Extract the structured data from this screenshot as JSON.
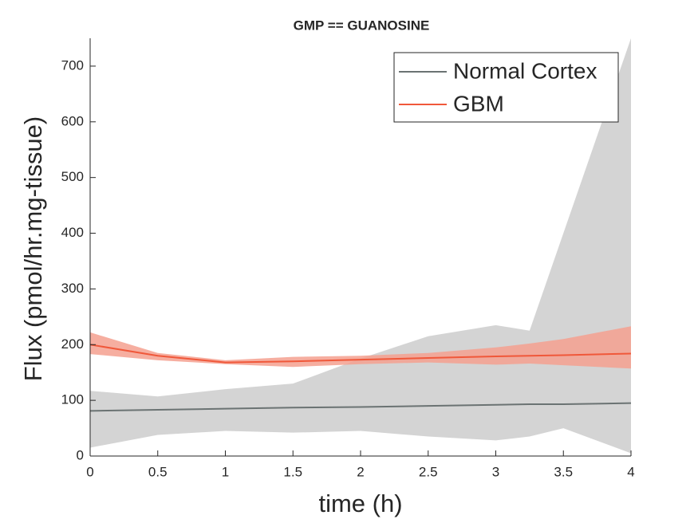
{
  "chart_data": {
    "type": "line",
    "title": "GMP == GUANOSINE",
    "x_label": "time (h)",
    "y_label": "Flux (pmol/hr.mg-tissue)",
    "x": [
      0,
      0.5,
      1,
      1.5,
      2,
      2.5,
      3,
      3.25,
      3.5,
      4
    ],
    "series": [
      {
        "name": "Normal Cortex",
        "color": "#6b7373",
        "band_color": "#d4d4d4",
        "values": [
          81,
          83,
          85,
          87,
          88,
          90,
          92,
          93,
          93,
          95
        ],
        "upper": [
          117,
          107,
          120,
          130,
          175,
          215,
          235,
          225,
          400,
          750
        ],
        "lower": [
          15,
          38,
          45,
          42,
          45,
          35,
          28,
          35,
          50,
          5
        ]
      },
      {
        "name": "GBM",
        "color": "#f0583a",
        "band_color": "#f4a08f",
        "values": [
          200,
          180,
          168,
          170,
          173,
          176,
          179,
          180,
          181,
          184
        ],
        "upper": [
          222,
          185,
          172,
          178,
          180,
          185,
          195,
          202,
          210,
          233
        ],
        "lower": [
          183,
          172,
          165,
          160,
          165,
          168,
          164,
          166,
          163,
          157
        ]
      }
    ],
    "xlim": [
      0,
      4
    ],
    "ylim": [
      0,
      750
    ],
    "xticks": [
      0,
      0.5,
      1,
      1.5,
      2,
      2.5,
      3,
      3.5,
      4
    ],
    "yticks": [
      0,
      100,
      200,
      300,
      400,
      500,
      600,
      700
    ],
    "legend": "upper right"
  }
}
